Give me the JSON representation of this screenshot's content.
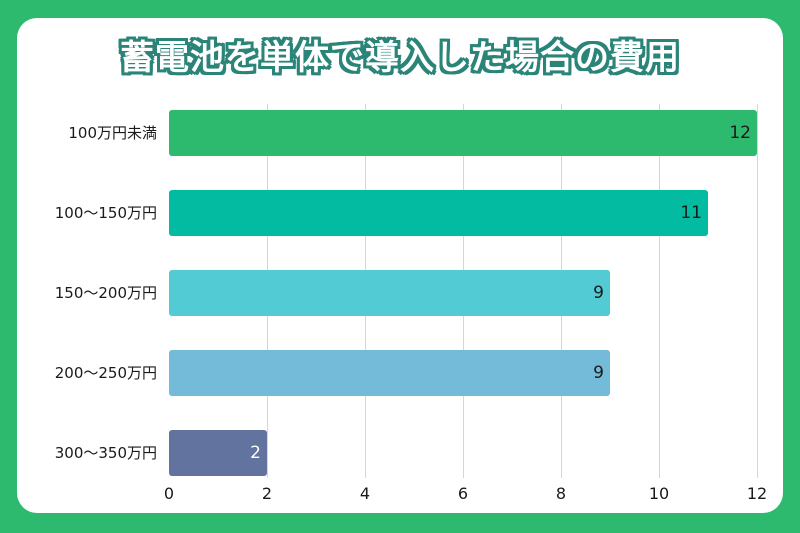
{
  "title": "蓄電池を単体で導入した場合の費用",
  "colors": {
    "background": "#2EBA6E",
    "card": "#FFFFFF",
    "title_outline": "#2A8478",
    "gridline": "#D6D6D6"
  },
  "chart_data": {
    "type": "bar",
    "orientation": "horizontal",
    "title": "蓄電池を単体で導入した場合の費用",
    "xlabel": "",
    "ylabel": "",
    "categories": [
      "100万円未満",
      "100〜150万円",
      "150〜200万円",
      "200〜250万円",
      "300〜350万円"
    ],
    "values": [
      12,
      11,
      9,
      9,
      2
    ],
    "bar_colors": [
      "#2EBA6E",
      "#02BBA0",
      "#52CBD4",
      "#74BBD9",
      "#6373A0"
    ],
    "value_label_colors": [
      "#1A1A1A",
      "#1A1A1A",
      "#1A1A1A",
      "#1A1A1A",
      "#FFFFFF"
    ],
    "xlim": [
      0,
      12
    ],
    "xticks": [
      0,
      2,
      4,
      6,
      8,
      10,
      12
    ],
    "grid": "vertical",
    "legend": "none",
    "data_labels": true
  }
}
